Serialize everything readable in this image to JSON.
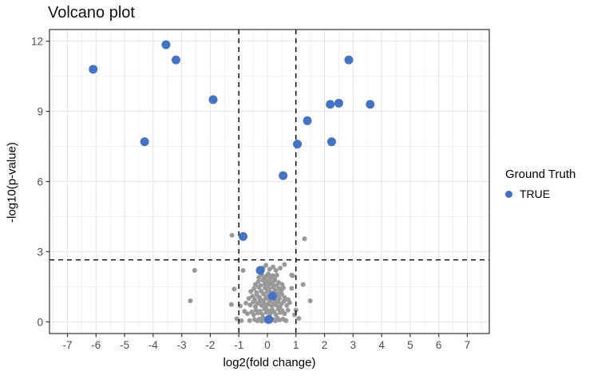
{
  "title": "Volcano plot",
  "legend": {
    "title": "Ground Truth",
    "items": [
      {
        "label": "TRUE",
        "color": "#4472C4"
      }
    ]
  },
  "colors": {
    "true_points": "#4472C4",
    "background_points": "#999999",
    "grid_major": "#E4E4E4",
    "grid_minor": "#F2F2F2",
    "panel_border": "#333333",
    "tick_label": "#4D4D4D",
    "threshold_line": "#000000"
  },
  "chart_data": {
    "type": "scatter",
    "title": "Volcano plot",
    "xlabel": "log2(fold change)",
    "ylabel": "-log10(p-value)",
    "xlim": [
      -7.63,
      7.77
    ],
    "ylim": [
      -0.5,
      12.5
    ],
    "x_ticks": [
      -7,
      -6,
      -5,
      -4,
      -3,
      -2,
      -1,
      0,
      1,
      2,
      3,
      4,
      5,
      6,
      7
    ],
    "y_ticks": [
      0,
      3,
      6,
      9,
      12
    ],
    "y_minor_ticks": [
      1.5,
      4.5,
      7.5,
      10.5
    ],
    "grid": true,
    "legend_position": "right",
    "thresholds": {
      "vlines": [
        -1,
        1
      ],
      "hline": 2.65,
      "style": "dashed"
    },
    "series": [
      {
        "name": "TRUE",
        "color": "#4472C4",
        "radius": 5.5,
        "points": [
          [
            -6.1,
            10.8
          ],
          [
            -4.3,
            7.7
          ],
          [
            -3.55,
            11.85
          ],
          [
            -3.2,
            11.2
          ],
          [
            -1.9,
            9.5
          ],
          [
            -0.85,
            3.65
          ],
          [
            -0.25,
            2.2
          ],
          [
            0.05,
            0.1
          ],
          [
            0.18,
            1.1
          ],
          [
            0.55,
            6.25
          ],
          [
            1.05,
            7.6
          ],
          [
            1.4,
            8.6
          ],
          [
            2.2,
            9.3
          ],
          [
            2.5,
            9.35
          ],
          [
            2.25,
            7.7
          ],
          [
            2.85,
            11.2
          ],
          [
            3.6,
            9.3
          ]
        ]
      },
      {
        "name": "background",
        "color": "#999999",
        "radius": 3,
        "points": [
          [
            -0.62,
            0.05
          ],
          [
            -0.45,
            0.1
          ],
          [
            -0.35,
            0.04
          ],
          [
            -0.28,
            0.12
          ],
          [
            -0.2,
            0.03
          ],
          [
            -0.15,
            0.18
          ],
          [
            -0.08,
            0.06
          ],
          [
            0.0,
            0.02
          ],
          [
            0.06,
            0.15
          ],
          [
            0.12,
            0.05
          ],
          [
            0.2,
            0.1
          ],
          [
            0.28,
            0.04
          ],
          [
            0.35,
            0.16
          ],
          [
            0.42,
            0.08
          ],
          [
            0.55,
            0.12
          ],
          [
            0.65,
            0.05
          ],
          [
            -0.91,
            0.05
          ],
          [
            -1.07,
            0.13
          ],
          [
            1.1,
            0.15
          ],
          [
            0.95,
            0.3
          ],
          [
            -0.7,
            0.35
          ],
          [
            -0.55,
            0.42
          ],
          [
            -0.48,
            0.3
          ],
          [
            -0.4,
            0.5
          ],
          [
            -0.33,
            0.38
          ],
          [
            -0.25,
            0.45
          ],
          [
            -0.18,
            0.32
          ],
          [
            -0.1,
            0.55
          ],
          [
            -0.03,
            0.4
          ],
          [
            0.04,
            0.48
          ],
          [
            0.1,
            0.35
          ],
          [
            0.17,
            0.52
          ],
          [
            0.24,
            0.42
          ],
          [
            0.3,
            0.3
          ],
          [
            0.38,
            0.55
          ],
          [
            0.45,
            0.4
          ],
          [
            0.52,
            0.48
          ],
          [
            0.6,
            0.35
          ],
          [
            0.72,
            0.5
          ],
          [
            1.0,
            0.5
          ],
          [
            -0.8,
            0.45
          ],
          [
            -0.95,
            0.68
          ],
          [
            -1.26,
            0.74
          ],
          [
            -0.75,
            0.8
          ],
          [
            -0.6,
            0.72
          ],
          [
            -0.5,
            0.85
          ],
          [
            -0.42,
            0.65
          ],
          [
            -0.35,
            0.78
          ],
          [
            -0.27,
            0.88
          ],
          [
            -0.2,
            0.7
          ],
          [
            -0.12,
            0.82
          ],
          [
            -0.05,
            0.65
          ],
          [
            0.02,
            0.75
          ],
          [
            0.08,
            0.88
          ],
          [
            0.15,
            0.68
          ],
          [
            0.22,
            0.8
          ],
          [
            0.3,
            0.72
          ],
          [
            0.37,
            0.85
          ],
          [
            0.44,
            0.65
          ],
          [
            0.5,
            0.78
          ],
          [
            0.58,
            0.88
          ],
          [
            0.68,
            0.7
          ],
          [
            0.78,
            0.82
          ],
          [
            -0.65,
            1.0
          ],
          [
            -0.52,
            1.1
          ],
          [
            -0.44,
            0.95
          ],
          [
            -0.36,
            1.15
          ],
          [
            -0.28,
            1.05
          ],
          [
            -0.2,
            0.92
          ],
          [
            -0.13,
            1.18
          ],
          [
            -0.06,
            1.0
          ],
          [
            0.01,
            1.1
          ],
          [
            0.07,
            0.95
          ],
          [
            0.14,
            1.15
          ],
          [
            0.21,
            1.02
          ],
          [
            0.28,
            0.93
          ],
          [
            0.35,
            1.12
          ],
          [
            0.42,
            1.0
          ],
          [
            0.5,
            1.18
          ],
          [
            0.6,
            1.05
          ],
          [
            0.73,
            0.95
          ],
          [
            1.5,
            0.9
          ],
          [
            -2.7,
            0.9
          ],
          [
            -0.58,
            1.3
          ],
          [
            -0.47,
            1.42
          ],
          [
            -0.38,
            1.25
          ],
          [
            -0.3,
            1.48
          ],
          [
            -0.22,
            1.32
          ],
          [
            -0.15,
            1.22
          ],
          [
            -0.08,
            1.45
          ],
          [
            0.0,
            1.3
          ],
          [
            0.06,
            1.4
          ],
          [
            0.13,
            1.25
          ],
          [
            0.2,
            1.48
          ],
          [
            0.27,
            1.35
          ],
          [
            0.34,
            1.22
          ],
          [
            0.41,
            1.42
          ],
          [
            0.48,
            1.3
          ],
          [
            0.56,
            1.45
          ],
          [
            0.85,
            1.43
          ],
          [
            -1.16,
            1.4
          ],
          [
            -0.42,
            1.6
          ],
          [
            -0.32,
            1.72
          ],
          [
            -0.24,
            1.55
          ],
          [
            -0.16,
            1.78
          ],
          [
            -0.09,
            1.62
          ],
          [
            -0.02,
            1.75
          ],
          [
            0.05,
            1.58
          ],
          [
            0.12,
            1.7
          ],
          [
            0.19,
            1.62
          ],
          [
            0.26,
            1.78
          ],
          [
            0.33,
            1.55
          ],
          [
            0.4,
            1.68
          ],
          [
            0.52,
            1.6
          ],
          [
            1.25,
            1.6
          ],
          [
            -0.3,
            1.9
          ],
          [
            -0.2,
            2.02
          ],
          [
            -0.12,
            1.85
          ],
          [
            -0.04,
            1.95
          ],
          [
            0.03,
            2.05
          ],
          [
            0.1,
            1.88
          ],
          [
            0.18,
            1.98
          ],
          [
            0.25,
            1.85
          ],
          [
            0.33,
            2.0
          ],
          [
            0.89,
            1.97
          ],
          [
            0.85,
            2.0
          ],
          [
            -0.85,
            2.2
          ],
          [
            -0.15,
            2.3
          ],
          [
            -0.05,
            2.42
          ],
          [
            0.08,
            2.25
          ],
          [
            0.2,
            2.35
          ],
          [
            0.3,
            2.2
          ],
          [
            0.45,
            2.3
          ],
          [
            0.6,
            2.45
          ],
          [
            -2.55,
            2.2
          ],
          [
            -1.24,
            3.7
          ],
          [
            1.3,
            3.55
          ]
        ]
      }
    ]
  }
}
